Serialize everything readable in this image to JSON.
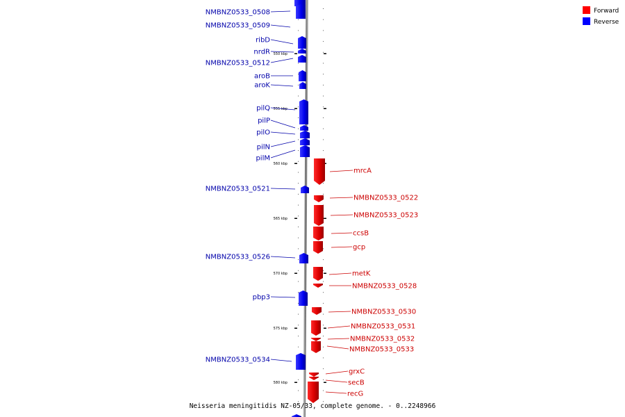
{
  "caption": "Neisseria meningitidis NZ-05/33, complete genome. - 0..2248966",
  "legend": [
    {
      "label": "Forward",
      "color": "#ff0000"
    },
    {
      "label": "Reverse",
      "color": "#0000ff"
    }
  ],
  "ticks": [
    "550 kbp",
    "555 kbp",
    "560 kbp",
    "565 kbp",
    "570 kbp",
    "575 kbp",
    "580 kbp"
  ],
  "reverse_genes": [
    "NMBNZ0533_0508",
    "NMBNZ0533_0509",
    "ribD",
    "nrdR",
    "NMBNZ0533_0512",
    "aroB",
    "aroK",
    "pilQ",
    "pilP",
    "pilO",
    "pilN",
    "pilM",
    "NMBNZ0533_0521",
    "NMBNZ0533_0526",
    "pbp3",
    "NMBNZ0533_0534"
  ],
  "forward_genes": [
    "mrcA",
    "NMBNZ0533_0522",
    "NMBNZ0533_0523",
    "ccsB",
    "gcp",
    "metK",
    "NMBNZ0533_0528",
    "NMBNZ0533_0530",
    "NMBNZ0533_0531",
    "NMBNZ0533_0532",
    "NMBNZ0533_0533",
    "grxC",
    "secB",
    "recG"
  ]
}
